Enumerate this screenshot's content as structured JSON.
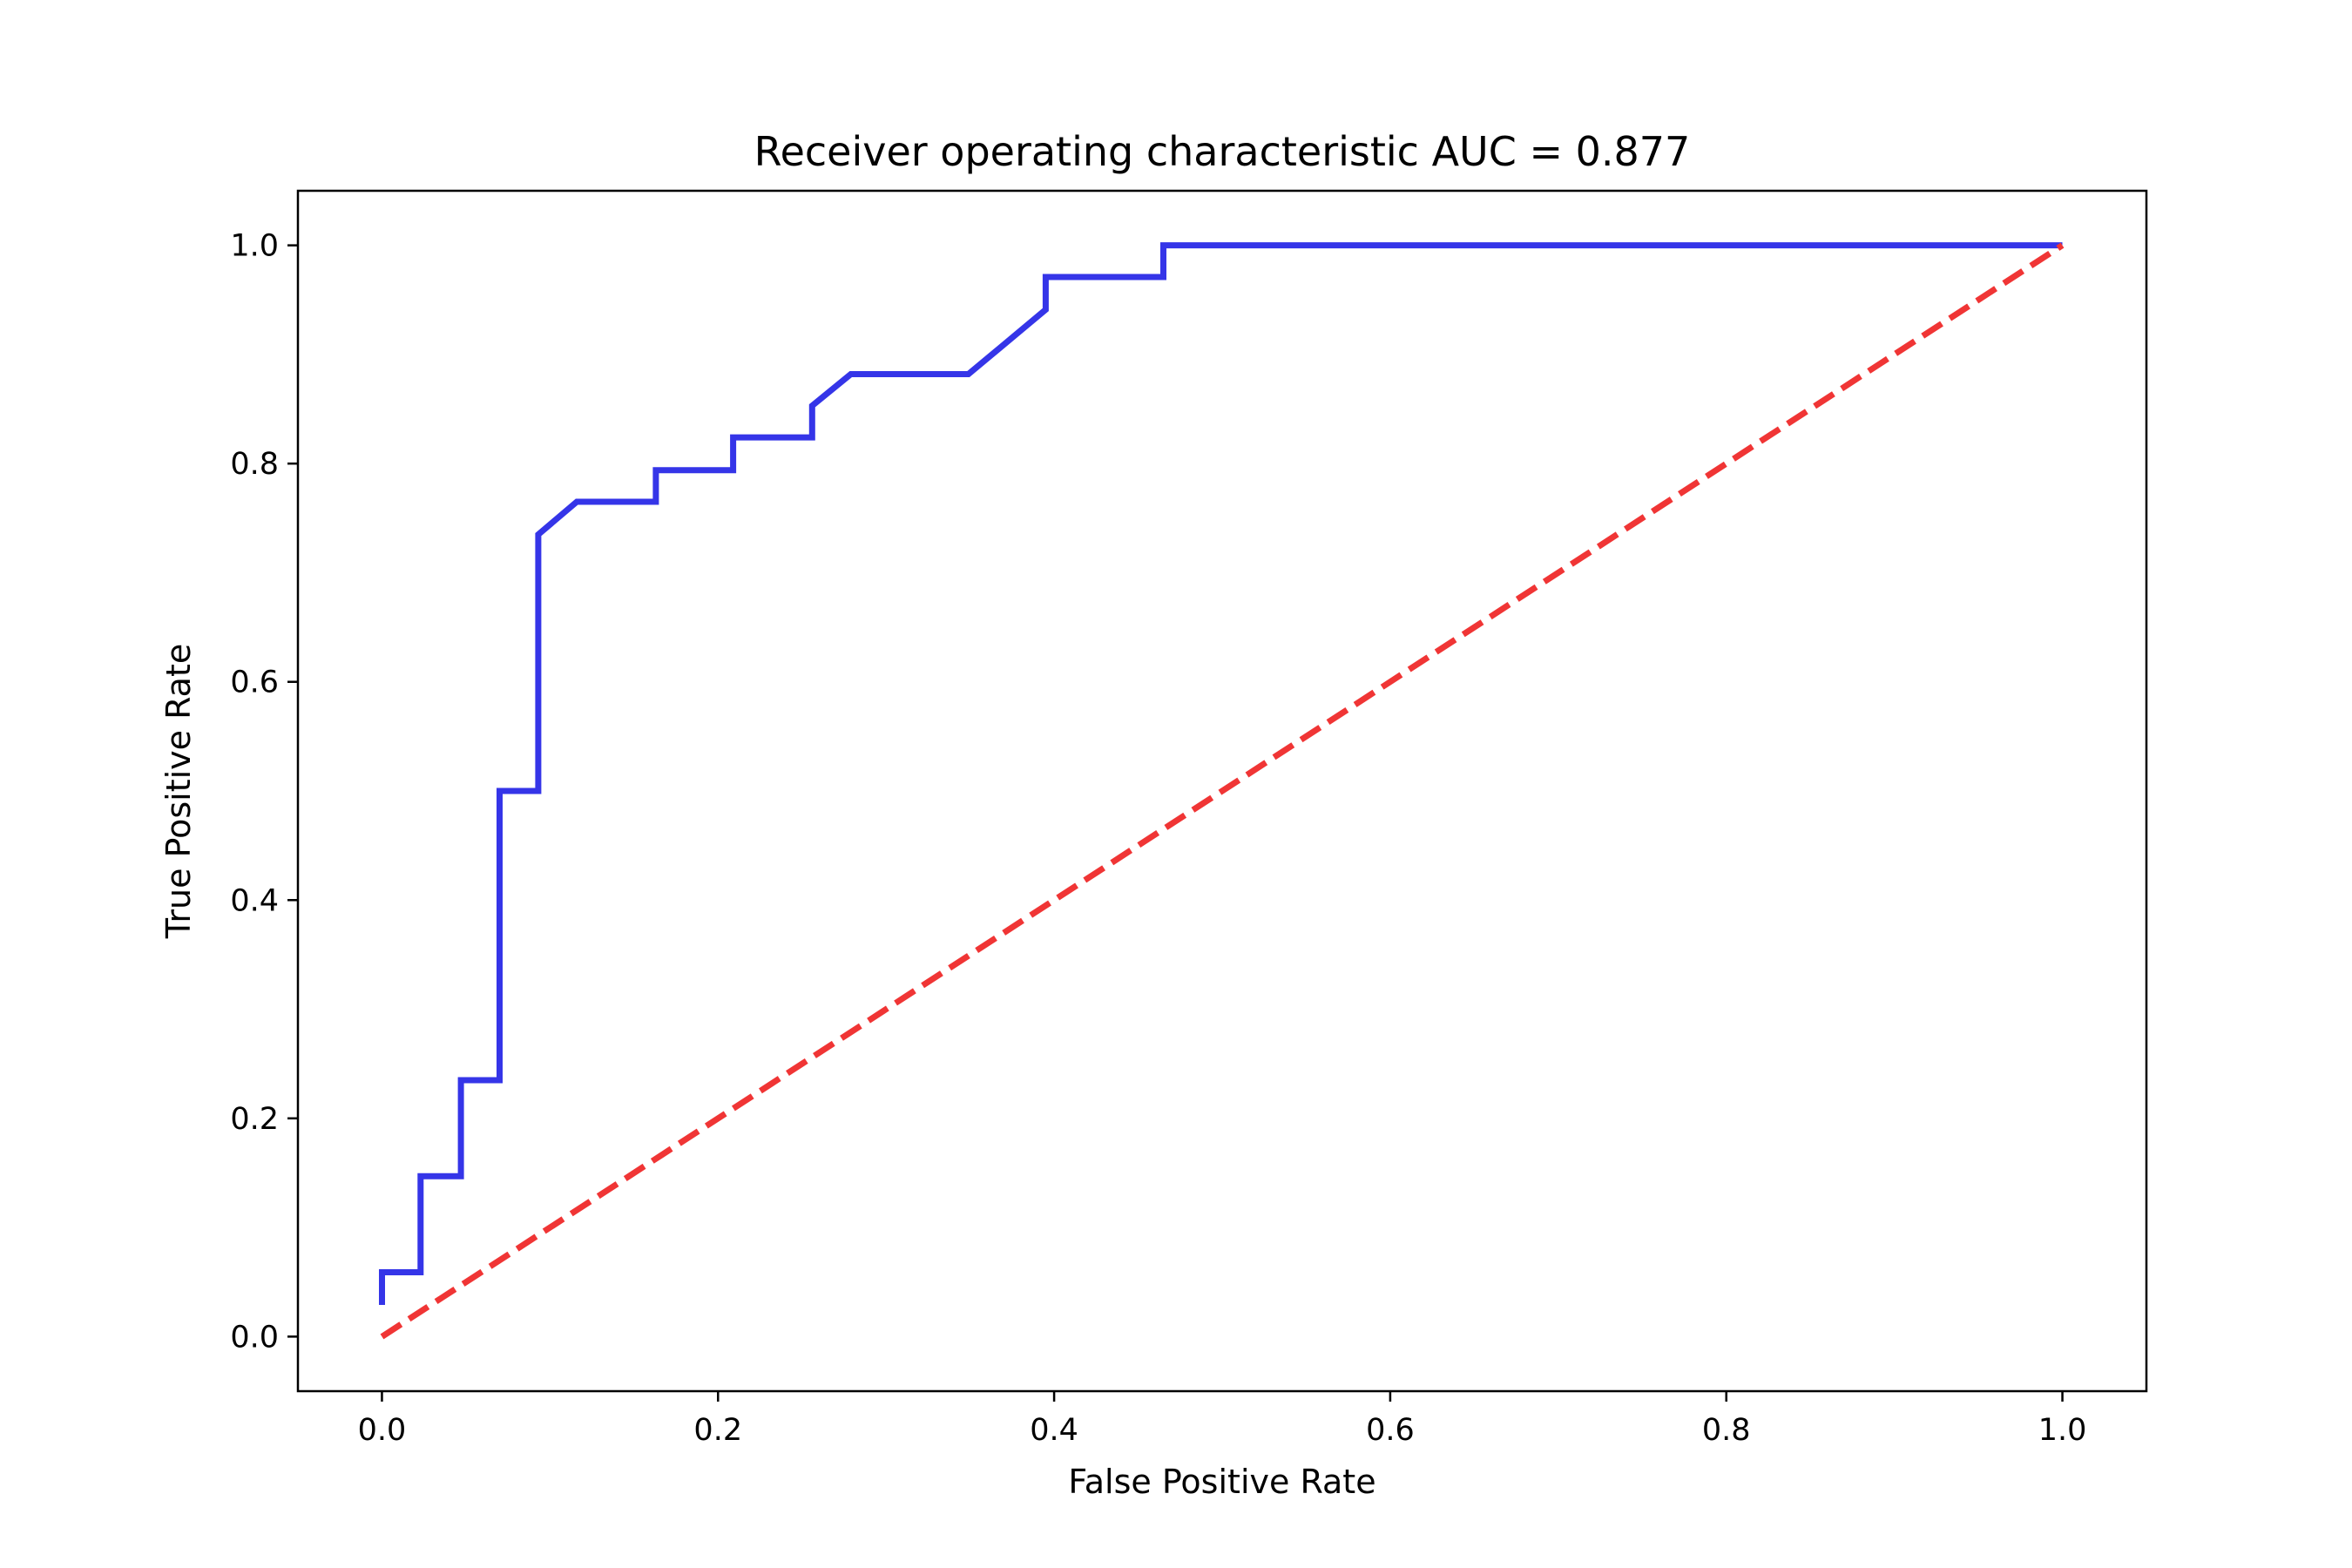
{
  "chart_data": {
    "type": "line",
    "title": "Receiver operating characteristic AUC = 0.877",
    "xlabel": "False Positive Rate",
    "ylabel": "True Positive Rate",
    "xlim": [
      -0.05,
      1.05
    ],
    "ylim": [
      -0.05,
      1.05
    ],
    "xticks": [
      0.0,
      0.2,
      0.4,
      0.6,
      0.8,
      1.0
    ],
    "xtick_labels": [
      "0.0",
      "0.2",
      "0.4",
      "0.6",
      "0.8",
      "1.0"
    ],
    "yticks": [
      0.0,
      0.2,
      0.4,
      0.6,
      0.8,
      1.0
    ],
    "ytick_labels": [
      "0.0",
      "0.2",
      "0.4",
      "0.6",
      "0.8",
      "1.0"
    ],
    "grid": false,
    "series": [
      {
        "color": "#3535e8",
        "style": "solid",
        "x": [
          0.0,
          0.0,
          0.023,
          0.023,
          0.047,
          0.047,
          0.07,
          0.07,
          0.093,
          0.093,
          0.116,
          0.163,
          0.163,
          0.209,
          0.209,
          0.256,
          0.256,
          0.279,
          0.349,
          0.395,
          0.395,
          0.465,
          0.465,
          1.0
        ],
        "y": [
          0.029,
          0.059,
          0.059,
          0.147,
          0.147,
          0.235,
          0.235,
          0.5,
          0.5,
          0.735,
          0.765,
          0.765,
          0.794,
          0.794,
          0.824,
          0.824,
          0.853,
          0.882,
          0.882,
          0.941,
          0.971,
          0.971,
          1.0,
          1.0
        ]
      },
      {
        "color": "#f03535",
        "style": "dashed",
        "x": [
          0.0,
          1.0
        ],
        "y": [
          0.0,
          1.0
        ]
      }
    ]
  }
}
